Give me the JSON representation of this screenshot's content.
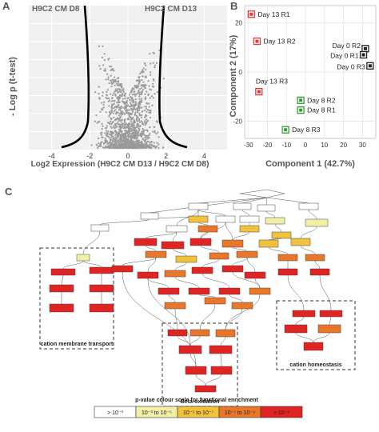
{
  "panels": {
    "a": "A",
    "b": "B",
    "c": "C"
  },
  "volcano": {
    "left_group": "H9C2 CM D8",
    "right_group": "H9C2 CM D13",
    "xlabel": "Log2 Expression (H9C2 CM D13 / H9C2 CM D8)",
    "ylabel": "- Log p (t-test)",
    "xticks": [
      "-4",
      "-2",
      "0",
      "2",
      "4"
    ]
  },
  "chart_data": [
    {
      "type": "scatter",
      "panel": "A",
      "xlabel": "Log2 Expression (H9C2 CM D13 / H9C2 CM D8)",
      "ylabel": "- Log p (t-test)",
      "xlim": [
        -5.2,
        5.2
      ],
      "xticks": [
        -4,
        -2,
        0,
        2,
        4
      ],
      "grid": true,
      "series": [
        {
          "color": "#9a9a9a",
          "n_points": 1400
        }
      ],
      "threshold_curves": "two hyperbolic cut-off curves near x = -3.5 and x = 3.1"
    },
    {
      "type": "scatter",
      "panel": "B",
      "xlabel": "Component 1 (42.7%)",
      "ylabel": "Component 2 (17%)",
      "xlim": [
        -32,
        37
      ],
      "ylim": [
        -27,
        27
      ],
      "xticks": [
        -30,
        -20,
        -10,
        0,
        10,
        20,
        30
      ],
      "yticks": [
        -20,
        0,
        20
      ],
      "points": [
        {
          "label": "Day 13 R1",
          "x": -28.5,
          "y": 23.5,
          "color": "#e23b3b"
        },
        {
          "label": "Day 13 R2",
          "x": -25.5,
          "y": 12.5,
          "color": "#e23b3b"
        },
        {
          "label": "Day 13 R3",
          "x": -24.5,
          "y": -8.0,
          "color": "#e23b3b"
        },
        {
          "label": "Day 0 R2",
          "x": 31.5,
          "y": 9.5,
          "color": "#222222"
        },
        {
          "label": "Day 0 R1",
          "x": 30.5,
          "y": 7.0,
          "color": "#222222"
        },
        {
          "label": "Day 0 R3",
          "x": 34.0,
          "y": 2.5,
          "color": "#222222"
        },
        {
          "label": "Day 8 R2",
          "x": -2.5,
          "y": -11.5,
          "color": "#3a9a3a"
        },
        {
          "label": "Day 8 R1",
          "x": -2.5,
          "y": -15.5,
          "color": "#3a9a3a"
        },
        {
          "label": "Day 8 R3",
          "x": -10.5,
          "y": -23.5,
          "color": "#3a9a3a"
        }
      ]
    }
  ],
  "network": {
    "title": "p-value colour scale for functional enrichment",
    "scale": [
      {
        "label": "> 10⁻³",
        "color": "#ffffff"
      },
      {
        "label": "10⁻³ to 10⁻⁵",
        "color": "#f2f0a8"
      },
      {
        "label": "10⁻⁵ to 10⁻⁷",
        "color": "#f2c23c"
      },
      {
        "label": "10⁻⁷ to 10⁻⁹",
        "color": "#e8772a"
      },
      {
        "label": "> 10⁻⁹",
        "color": "#e02424"
      }
    ],
    "groups": {
      "transport": "cation membrane transport",
      "beta": "Beta-oxidation",
      "homeostasis": "cation homeostasis"
    }
  }
}
